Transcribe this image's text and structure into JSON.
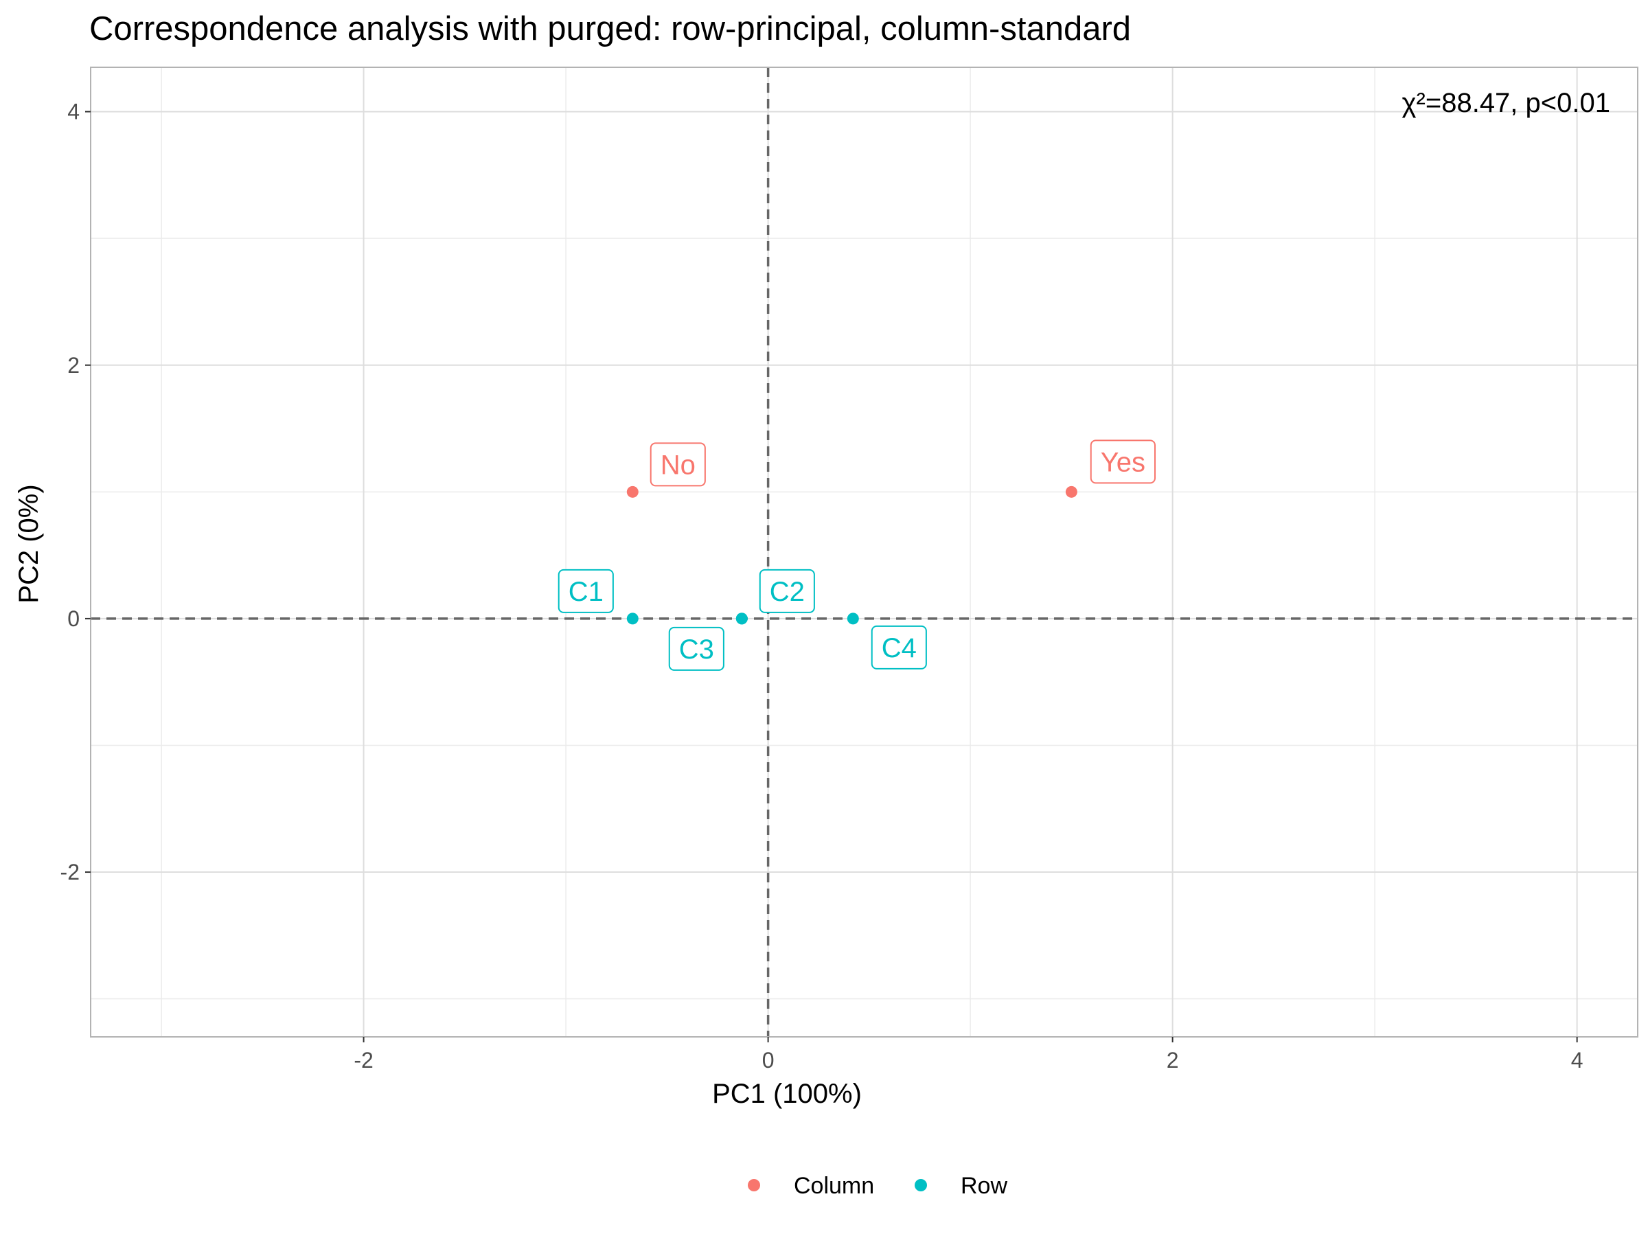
{
  "chart_data": {
    "type": "scatter",
    "title": "Correspondence analysis with purged: row-principal, column-standard",
    "xlabel": "PC1 (100%)",
    "ylabel": "PC2 (0%)",
    "xlim": [
      -3.35,
      4.3
    ],
    "ylim": [
      -3.3,
      4.35
    ],
    "x_ticks": [
      -2,
      0,
      2,
      4
    ],
    "y_ticks": [
      -2,
      0,
      2,
      4
    ],
    "x_tick_labels": [
      "-2",
      "0",
      "2",
      "4"
    ],
    "y_tick_labels": [
      "-2",
      "0",
      "2",
      "4"
    ],
    "grid": true,
    "reference_lines": {
      "x": 0,
      "y": 0,
      "style": "dashed"
    },
    "annotation": "χ²=88.47, p<0.01",
    "legend_position": "bottom",
    "series": [
      {
        "name": "Column",
        "color": "#F8766D",
        "points": [
          {
            "label": "No",
            "x": -0.67,
            "y": 1.0
          },
          {
            "label": "Yes",
            "x": 1.5,
            "y": 1.0
          }
        ]
      },
      {
        "name": "Row",
        "color": "#00BFC4",
        "points": [
          {
            "label": "C1",
            "x": -0.67,
            "y": 0.0
          },
          {
            "label": "C2",
            "x": -0.13,
            "y": 0.0
          },
          {
            "label": "C3",
            "x": -0.13,
            "y": 0.0
          },
          {
            "label": "C4",
            "x": 0.42,
            "y": 0.0
          }
        ]
      }
    ]
  }
}
